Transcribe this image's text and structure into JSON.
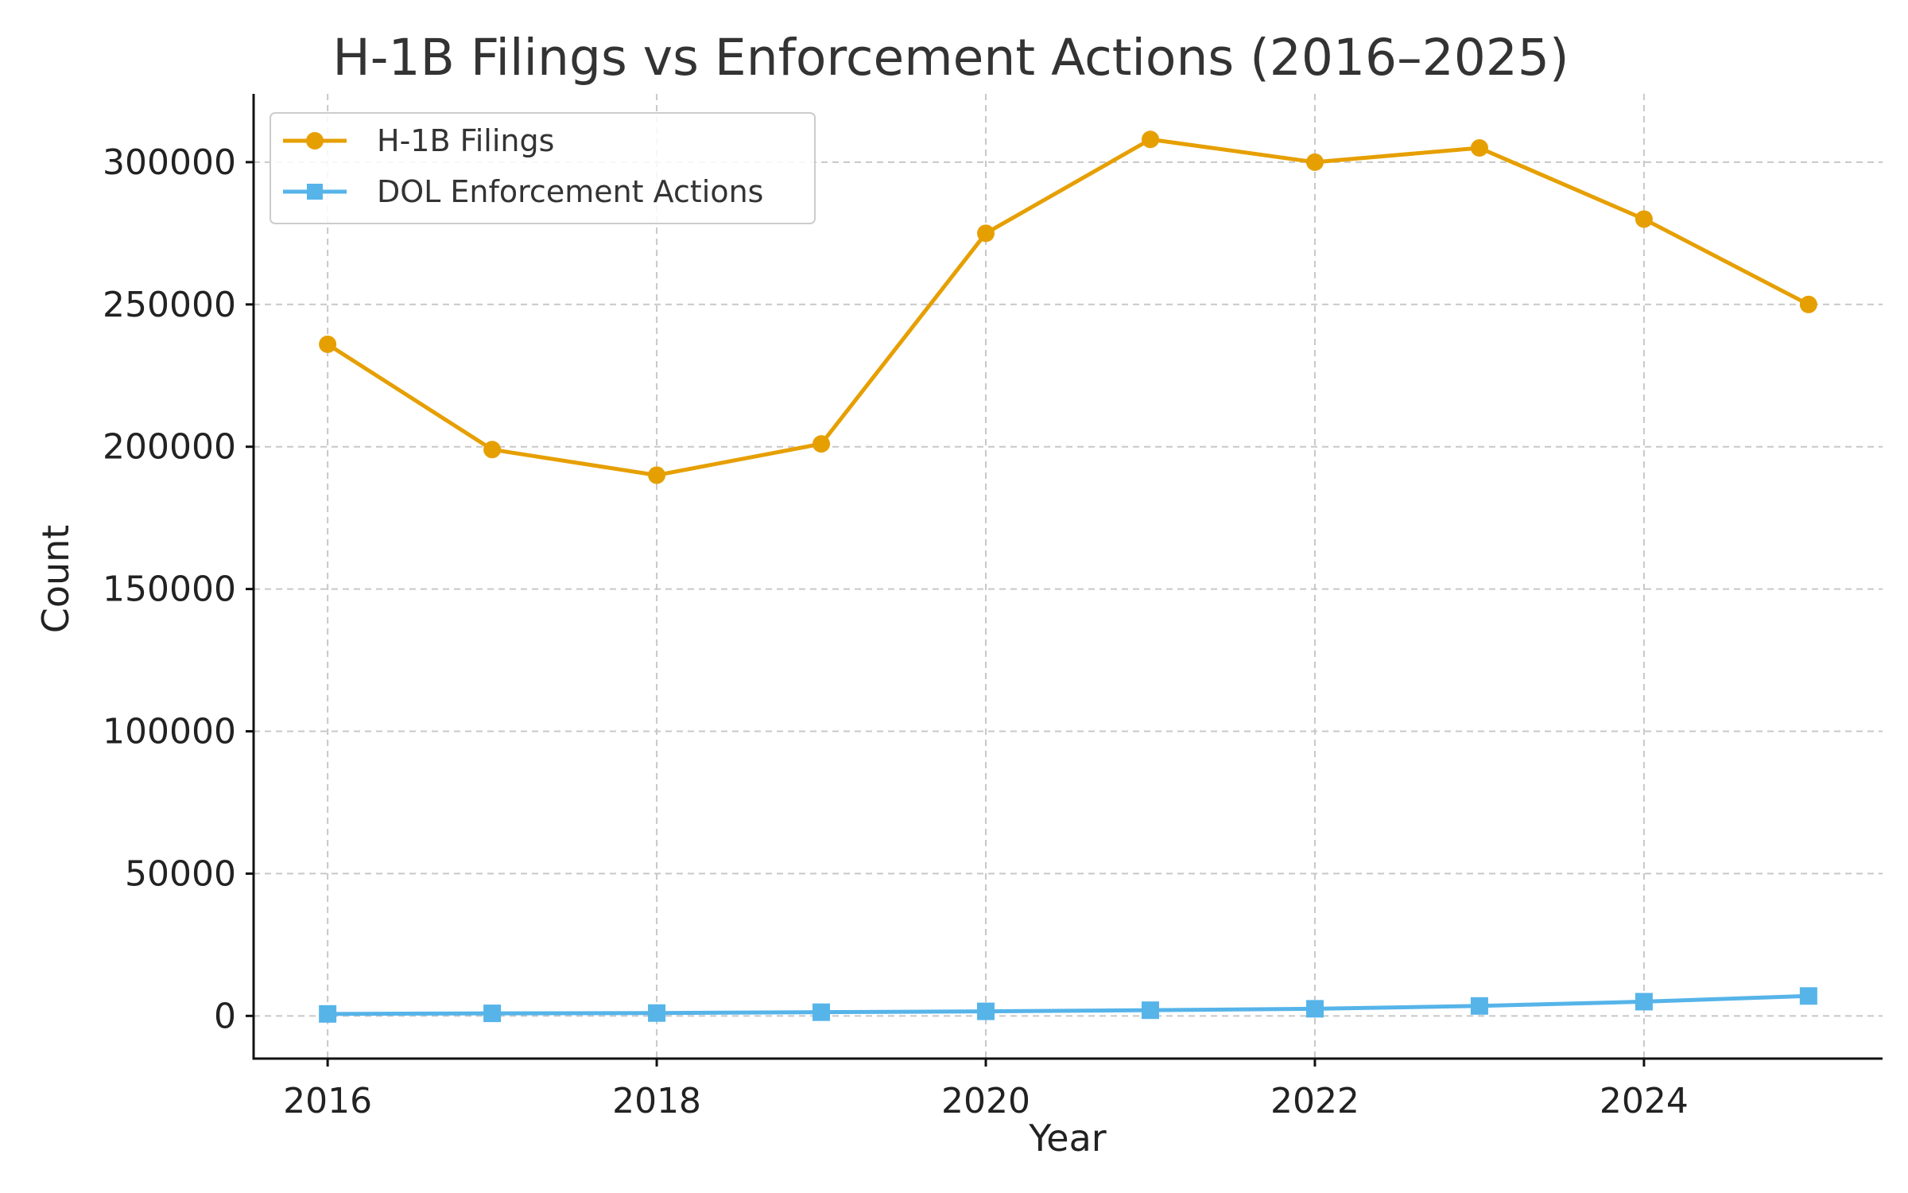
{
  "chart_data": {
    "type": "line",
    "title": "H-1B Filings vs Enforcement Actions (2016–2025)",
    "xlabel": "Year",
    "ylabel": "Count",
    "x": [
      2016,
      2017,
      2018,
      2019,
      2020,
      2021,
      2022,
      2023,
      2024,
      2025
    ],
    "xlim": [
      2015.55,
      2025.45
    ],
    "ylim": [
      -15000,
      324000
    ],
    "xticks": [
      2016,
      2018,
      2020,
      2022,
      2024
    ],
    "yticks": [
      0,
      50000,
      100000,
      150000,
      200000,
      250000,
      300000
    ],
    "grid": true,
    "legend_position": "top-left",
    "series": [
      {
        "name": "H-1B Filings",
        "color": "#E69F00",
        "marker": "circle",
        "values": [
          236000,
          199000,
          190000,
          201000,
          275000,
          308000,
          300000,
          305000,
          280000,
          250000
        ]
      },
      {
        "name": "DOL Enforcement Actions",
        "color": "#56B4E9",
        "marker": "square",
        "values": [
          700,
          900,
          1000,
          1300,
          1600,
          2000,
          2500,
          3500,
          5000,
          7000
        ]
      }
    ]
  }
}
